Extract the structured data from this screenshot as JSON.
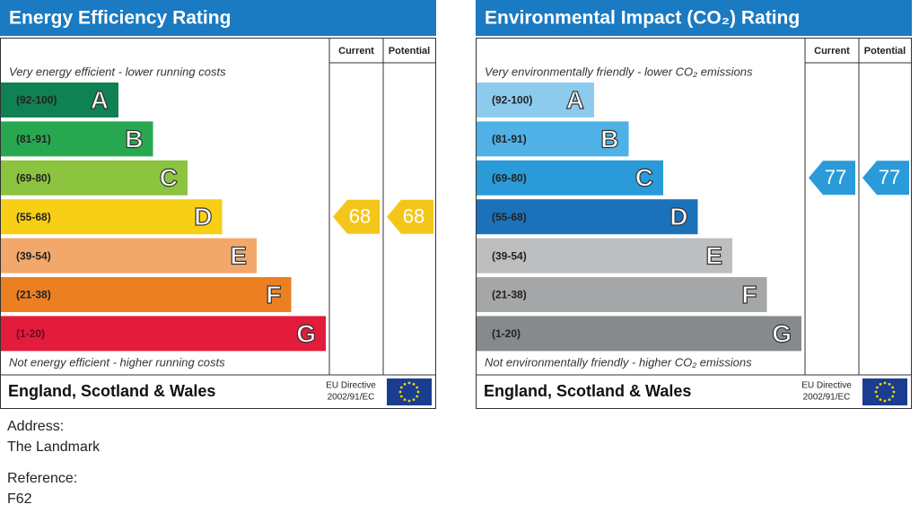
{
  "panels": [
    {
      "title": "Energy Efficiency Rating",
      "columns": [
        "Current",
        "Potential"
      ],
      "top_note": "Very energy efficient - lower running costs",
      "bottom_note": "Not energy efficient - higher running costs",
      "bands": [
        {
          "range": "(92-100)",
          "letter": "A",
          "color": "#0f8153"
        },
        {
          "range": "(81-91)",
          "letter": "B",
          "color": "#27a850"
        },
        {
          "range": "(69-80)",
          "letter": "C",
          "color": "#8cc43f"
        },
        {
          "range": "(55-68)",
          "letter": "D",
          "color": "#f7cf14"
        },
        {
          "range": "(39-54)",
          "letter": "E",
          "color": "#f2a86a"
        },
        {
          "range": "(21-38)",
          "letter": "F",
          "color": "#eb7f22"
        },
        {
          "range": "(1-20)",
          "letter": "G",
          "color": "#e31c3c"
        }
      ],
      "current": 68,
      "potential": 68,
      "arrow_color": "#f5c61a",
      "region": "England, Scotland & Wales",
      "directive": [
        "EU Directive",
        "2002/91/EC"
      ]
    },
    {
      "title": "Environmental Impact (CO₂) Rating",
      "columns": [
        "Current",
        "Potential"
      ],
      "top_note": "Very environmentally friendly - lower CO₂ emissions",
      "bottom_note": "Not environmentally friendly - higher CO₂ emissions",
      "bands": [
        {
          "range": "(92-100)",
          "letter": "A",
          "color": "#8ccbee"
        },
        {
          "range": "(81-91)",
          "letter": "B",
          "color": "#4fb1e5"
        },
        {
          "range": "(69-80)",
          "letter": "C",
          "color": "#2a9bd8"
        },
        {
          "range": "(55-68)",
          "letter": "D",
          "color": "#1c72ba"
        },
        {
          "range": "(39-54)",
          "letter": "E",
          "color": "#bcbec0"
        },
        {
          "range": "(21-38)",
          "letter": "F",
          "color": "#a4a6a8"
        },
        {
          "range": "(1-20)",
          "letter": "G",
          "color": "#878a8c"
        }
      ],
      "current": 77,
      "potential": 77,
      "arrow_color": "#2a9bd8",
      "region": "England, Scotland & Wales",
      "directive": [
        "EU Directive",
        "2002/91/EC"
      ]
    }
  ],
  "address": {
    "label": "Address:",
    "value": "The Landmark"
  },
  "reference": {
    "label": "Reference:",
    "value": "F62"
  }
}
